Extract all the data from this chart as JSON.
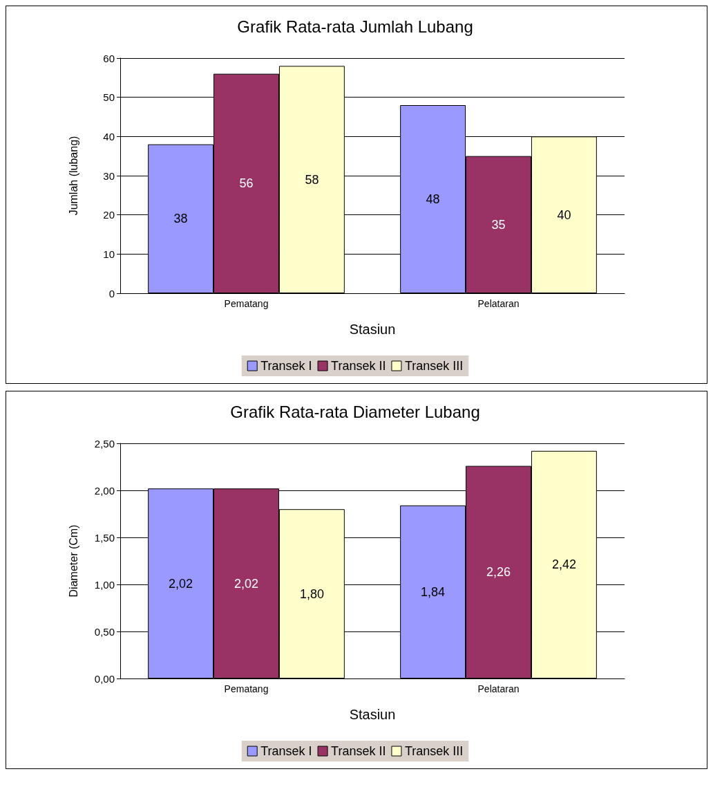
{
  "chart_data": [
    {
      "type": "bar",
      "title": "Grafik Rata-rata Jumlah Lubang",
      "xlabel": "Stasiun",
      "ylabel": "Jumlah (lubang)",
      "categories": [
        "Pematang",
        "Pelataran"
      ],
      "series": [
        {
          "name": "Transek I",
          "color": "#9999ff",
          "values": [
            38,
            48
          ]
        },
        {
          "name": "Transek II",
          "color": "#993366",
          "values": [
            56,
            35
          ]
        },
        {
          "name": "Transek III",
          "color": "#ffffcc",
          "values": [
            58,
            40
          ]
        }
      ],
      "data_labels": true,
      "ylim": [
        0,
        60
      ],
      "yticks": [
        0,
        10,
        20,
        30,
        40,
        50,
        60
      ],
      "grid": "y",
      "legend": "bottom"
    },
    {
      "type": "bar",
      "title": "Grafik Rata-rata Diameter Lubang",
      "xlabel": "Stasiun",
      "ylabel": "Diameter (Cm)",
      "categories": [
        "Pematang",
        "Pelataran"
      ],
      "series": [
        {
          "name": "Transek I",
          "color": "#9999ff",
          "values": [
            2.02,
            1.84
          ],
          "value_labels": [
            "2,02",
            "1,84"
          ]
        },
        {
          "name": "Transek II",
          "color": "#993366",
          "values": [
            2.02,
            2.26
          ],
          "value_labels": [
            "2,02",
            "2,26"
          ]
        },
        {
          "name": "Transek III",
          "color": "#ffffcc",
          "values": [
            1.8,
            2.42
          ],
          "value_labels": [
            "1,80",
            "2,42"
          ]
        }
      ],
      "ylim": [
        0,
        2.5
      ],
      "yticks": [
        {
          "value": 0,
          "label": "0,00"
        },
        {
          "value": 0.5,
          "label": "0,50"
        },
        {
          "value": 1,
          "label": "1,00"
        },
        {
          "value": 1.5,
          "label": "1,50"
        },
        {
          "value": 2,
          "label": "2,00"
        },
        {
          "value": 2.5,
          "label": "2,50"
        }
      ],
      "grid": "y",
      "legend": "bottom"
    }
  ]
}
